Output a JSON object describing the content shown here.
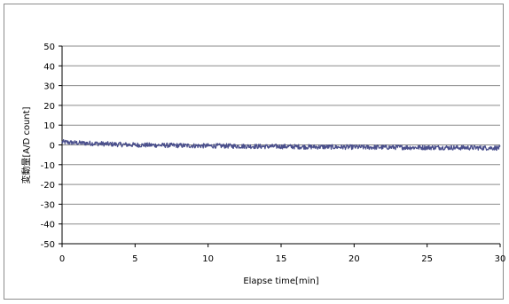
{
  "chart_data": {
    "type": "line",
    "title": "",
    "xlabel": "Elapse time[min]",
    "ylabel": "変動量[A/D count]",
    "xlim": [
      0,
      30
    ],
    "ylim": [
      -50,
      50
    ],
    "x_ticks": [
      0,
      5,
      10,
      15,
      20,
      25,
      30
    ],
    "y_ticks": [
      50,
      40,
      30,
      20,
      10,
      0,
      -10,
      -20,
      -30,
      -40,
      -50
    ],
    "grid": "horizontal",
    "legend": "none",
    "series": [
      {
        "color": "#4a4f8c",
        "x": [
          0,
          1,
          2,
          3,
          4,
          5,
          6,
          7,
          8,
          9,
          10,
          11,
          12,
          13,
          14,
          15,
          16,
          17,
          18,
          19,
          20,
          21,
          22,
          23,
          24,
          25,
          26,
          27,
          28,
          29,
          30
        ],
        "y": [
          1.5,
          1.0,
          0.8,
          0.5,
          0.2,
          0.0,
          -0.1,
          -0.2,
          -0.3,
          -0.4,
          -0.5,
          -0.5,
          -0.6,
          -0.7,
          -0.8,
          -0.8,
          -0.9,
          -1.0,
          -1.0,
          -1.1,
          -1.1,
          -1.2,
          -1.2,
          -1.2,
          -1.3,
          -1.3,
          -1.3,
          -1.4,
          -1.4,
          -1.5,
          -1.5
        ],
        "noise_amplitude": 1.2
      }
    ]
  }
}
